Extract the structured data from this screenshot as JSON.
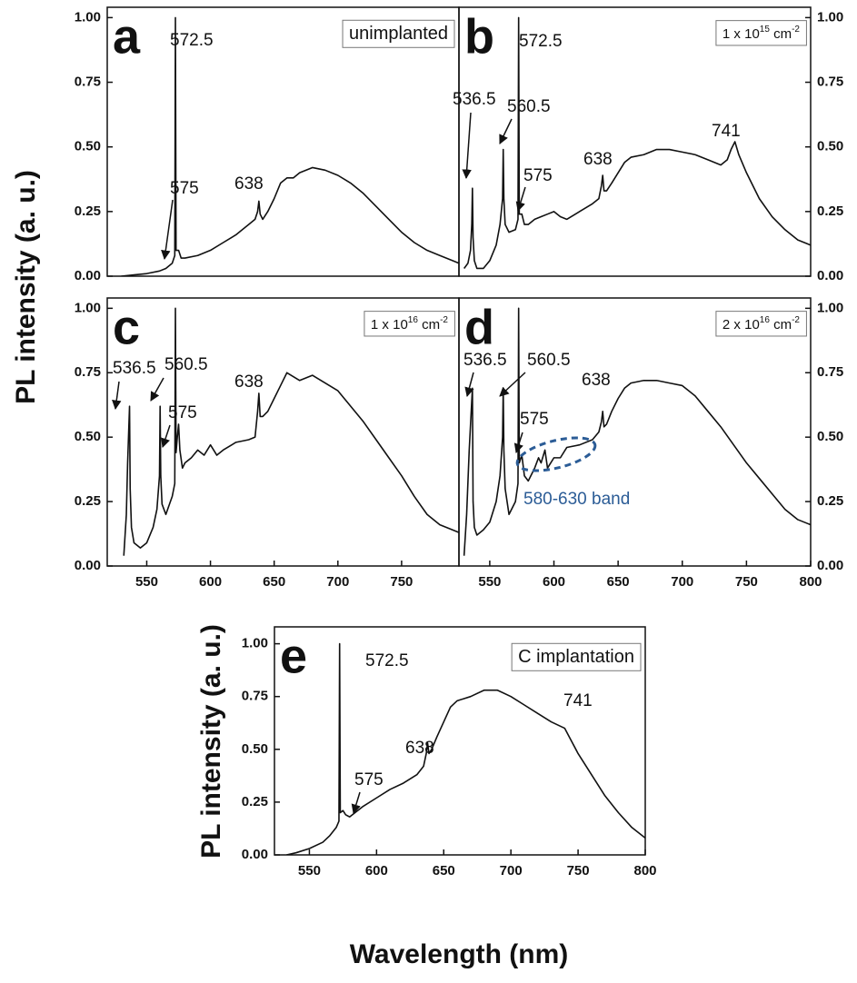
{
  "chart_data": [
    {
      "type": "line",
      "panel": "a",
      "legend_parts": [
        "unimplanted"
      ],
      "color": "#111111",
      "ylabel": "PL intensity (a. u.)",
      "yaxis_side": "left",
      "xlim": [
        519,
        795
      ],
      "ylim": [
        0,
        1.04
      ],
      "yticks": [
        {
          "value": 0,
          "label": "0.00"
        },
        {
          "value": 0.25,
          "label": "0.25"
        },
        {
          "value": 0.5,
          "label": "0.50"
        },
        {
          "value": 0.75,
          "label": "0.75"
        },
        {
          "value": 1,
          "label": "1.00"
        }
      ],
      "annotations": [
        "572.5",
        "575",
        "638"
      ],
      "x": [
        530,
        540,
        550,
        560,
        565,
        570,
        572,
        572.5,
        573,
        575,
        577,
        580,
        590,
        600,
        610,
        620,
        630,
        635,
        637,
        638,
        639,
        641,
        645,
        650,
        655,
        660,
        665,
        670,
        680,
        690,
        700,
        710,
        720,
        730,
        740,
        750,
        760,
        770,
        780,
        790,
        795
      ],
      "values": [
        0.0,
        0.005,
        0.01,
        0.02,
        0.03,
        0.05,
        0.08,
        1.0,
        0.1,
        0.1,
        0.07,
        0.07,
        0.08,
        0.1,
        0.13,
        0.16,
        0.2,
        0.22,
        0.25,
        0.29,
        0.24,
        0.22,
        0.25,
        0.3,
        0.36,
        0.38,
        0.38,
        0.4,
        0.42,
        0.41,
        0.39,
        0.36,
        0.32,
        0.27,
        0.22,
        0.17,
        0.13,
        0.1,
        0.08,
        0.06,
        0.05
      ]
    },
    {
      "type": "line",
      "panel": "b",
      "legend_parts": [
        "1 x 10",
        "15",
        " cm",
        "-2"
      ],
      "color": "#111111",
      "yaxis_side": "right",
      "xlim": [
        526,
        800
      ],
      "ylim": [
        0,
        1.04
      ],
      "yticks": [
        {
          "value": 0,
          "label": "0.00"
        },
        {
          "value": 0.25,
          "label": "0.25"
        },
        {
          "value": 0.5,
          "label": "0.50"
        },
        {
          "value": 0.75,
          "label": "0.75"
        },
        {
          "value": 1,
          "label": "1.00"
        }
      ],
      "annotations": [
        "536.5",
        "572.5",
        "560.5",
        "575",
        "638",
        "741"
      ],
      "x": [
        530,
        533,
        535,
        536,
        536.5,
        537,
        538,
        540,
        545,
        550,
        555,
        558,
        560,
        560.5,
        561,
        562,
        565,
        570,
        572,
        572.5,
        573,
        575,
        577,
        580,
        585,
        590,
        595,
        600,
        605,
        610,
        620,
        630,
        635,
        637,
        638,
        639,
        641,
        645,
        650,
        655,
        660,
        670,
        680,
        690,
        700,
        710,
        720,
        730,
        735,
        738,
        741,
        744,
        750,
        760,
        770,
        780,
        790,
        800
      ],
      "values": [
        0.03,
        0.05,
        0.1,
        0.2,
        0.34,
        0.15,
        0.06,
        0.03,
        0.03,
        0.06,
        0.12,
        0.2,
        0.3,
        0.49,
        0.3,
        0.2,
        0.17,
        0.18,
        0.22,
        1.0,
        0.24,
        0.24,
        0.2,
        0.2,
        0.22,
        0.23,
        0.24,
        0.25,
        0.23,
        0.22,
        0.25,
        0.28,
        0.3,
        0.35,
        0.39,
        0.33,
        0.33,
        0.36,
        0.4,
        0.44,
        0.46,
        0.47,
        0.49,
        0.49,
        0.48,
        0.47,
        0.45,
        0.43,
        0.45,
        0.49,
        0.52,
        0.47,
        0.4,
        0.3,
        0.23,
        0.18,
        0.14,
        0.12
      ]
    },
    {
      "type": "line",
      "panel": "c",
      "legend_parts": [
        "1 x 10",
        "16",
        " cm",
        "-2"
      ],
      "color": "#111111",
      "yaxis_side": "left",
      "xlim": [
        519,
        795
      ],
      "ylim": [
        0,
        1.04
      ],
      "yticks": [
        {
          "value": 0,
          "label": "0.00"
        },
        {
          "value": 0.25,
          "label": "0.25"
        },
        {
          "value": 0.5,
          "label": "0.50"
        },
        {
          "value": 0.75,
          "label": "0.75"
        },
        {
          "value": 1,
          "label": "1.00"
        }
      ],
      "xticks": [
        550,
        600,
        650,
        700,
        750
      ],
      "annotations": [
        "536.5",
        "560.5",
        "575",
        "638"
      ],
      "x": [
        532,
        534,
        535,
        536.5,
        537,
        538,
        540,
        545,
        550,
        555,
        558,
        560,
        560.5,
        561,
        562,
        565,
        570,
        572,
        572.5,
        573,
        574,
        575,
        576,
        578,
        580,
        585,
        590,
        595,
        600,
        605,
        610,
        620,
        630,
        635,
        637,
        638,
        639,
        641,
        645,
        650,
        655,
        660,
        670,
        680,
        690,
        700,
        710,
        720,
        730,
        740,
        750,
        760,
        770,
        780,
        790,
        795
      ],
      "values": [
        0.04,
        0.2,
        0.4,
        0.62,
        0.3,
        0.15,
        0.09,
        0.07,
        0.09,
        0.15,
        0.22,
        0.35,
        0.62,
        0.35,
        0.24,
        0.2,
        0.27,
        0.32,
        1.0,
        0.44,
        0.5,
        0.55,
        0.45,
        0.38,
        0.4,
        0.42,
        0.45,
        0.43,
        0.47,
        0.43,
        0.45,
        0.48,
        0.49,
        0.5,
        0.6,
        0.67,
        0.58,
        0.58,
        0.6,
        0.65,
        0.7,
        0.75,
        0.72,
        0.74,
        0.71,
        0.68,
        0.62,
        0.56,
        0.49,
        0.42,
        0.35,
        0.27,
        0.2,
        0.16,
        0.14,
        0.13
      ]
    },
    {
      "type": "line",
      "panel": "d",
      "legend_parts": [
        "2 x 10",
        "16",
        " cm",
        "-2"
      ],
      "color": "#111111",
      "yaxis_side": "right",
      "xlim": [
        526,
        800
      ],
      "ylim": [
        0,
        1.04
      ],
      "yticks": [
        {
          "value": 0,
          "label": "0.00"
        },
        {
          "value": 0.25,
          "label": "0.25"
        },
        {
          "value": 0.5,
          "label": "0.50"
        },
        {
          "value": 0.75,
          "label": "0.75"
        },
        {
          "value": 1,
          "label": "1.00"
        }
      ],
      "xticks": [
        550,
        600,
        650,
        700,
        750,
        800
      ],
      "annotations": [
        "536.5",
        "560.5",
        "638",
        "575"
      ],
      "band_label": "580-630 band",
      "band_color": "#2b5c96",
      "x": [
        530,
        532,
        534,
        536.5,
        537,
        538,
        540,
        545,
        550,
        555,
        558,
        560,
        560.5,
        561,
        562,
        565,
        570,
        572,
        572.5,
        573,
        575,
        577,
        580,
        585,
        588,
        590,
        593,
        595,
        600,
        605,
        610,
        620,
        630,
        635,
        637,
        638,
        639,
        641,
        645,
        650,
        655,
        660,
        670,
        680,
        690,
        700,
        710,
        720,
        730,
        740,
        750,
        760,
        770,
        780,
        790,
        800
      ],
      "values": [
        0.04,
        0.2,
        0.45,
        0.69,
        0.25,
        0.15,
        0.12,
        0.14,
        0.17,
        0.25,
        0.35,
        0.5,
        0.69,
        0.45,
        0.3,
        0.2,
        0.25,
        0.32,
        1.0,
        0.4,
        0.43,
        0.35,
        0.33,
        0.38,
        0.42,
        0.4,
        0.45,
        0.38,
        0.42,
        0.42,
        0.46,
        0.47,
        0.49,
        0.52,
        0.56,
        0.6,
        0.54,
        0.55,
        0.6,
        0.65,
        0.69,
        0.71,
        0.72,
        0.72,
        0.71,
        0.7,
        0.66,
        0.6,
        0.54,
        0.47,
        0.4,
        0.34,
        0.28,
        0.22,
        0.18,
        0.16
      ]
    },
    {
      "type": "line",
      "panel": "e",
      "legend_parts": [
        "C implantation"
      ],
      "color": "#111111",
      "ylabel": "PL intensity (a. u.)",
      "xlabel": "Wavelength (nm)",
      "yaxis_side": "left",
      "xlim": [
        524,
        800
      ],
      "ylim": [
        0,
        1.08
      ],
      "yticks": [
        {
          "value": 0,
          "label": "0.00"
        },
        {
          "value": 0.25,
          "label": "0.25"
        },
        {
          "value": 0.5,
          "label": "0.50"
        },
        {
          "value": 0.75,
          "label": "0.75"
        },
        {
          "value": 1,
          "label": "1.00"
        }
      ],
      "xticks": [
        550,
        600,
        650,
        700,
        750,
        800
      ],
      "annotations": [
        "572.5",
        "638",
        "575",
        "741"
      ],
      "x": [
        533,
        540,
        550,
        560,
        565,
        570,
        572,
        572.5,
        573,
        575,
        577,
        580,
        590,
        600,
        610,
        620,
        630,
        635,
        637,
        638,
        639,
        641,
        645,
        650,
        655,
        660,
        670,
        680,
        690,
        700,
        710,
        720,
        730,
        740,
        745,
        750,
        760,
        770,
        780,
        790,
        800
      ],
      "values": [
        0.0,
        0.01,
        0.03,
        0.06,
        0.09,
        0.13,
        0.16,
        1.0,
        0.2,
        0.21,
        0.19,
        0.18,
        0.23,
        0.27,
        0.31,
        0.34,
        0.38,
        0.42,
        0.48,
        0.53,
        0.48,
        0.5,
        0.56,
        0.63,
        0.7,
        0.73,
        0.75,
        0.78,
        0.78,
        0.75,
        0.71,
        0.67,
        0.63,
        0.6,
        0.54,
        0.48,
        0.38,
        0.28,
        0.2,
        0.13,
        0.08
      ]
    }
  ]
}
